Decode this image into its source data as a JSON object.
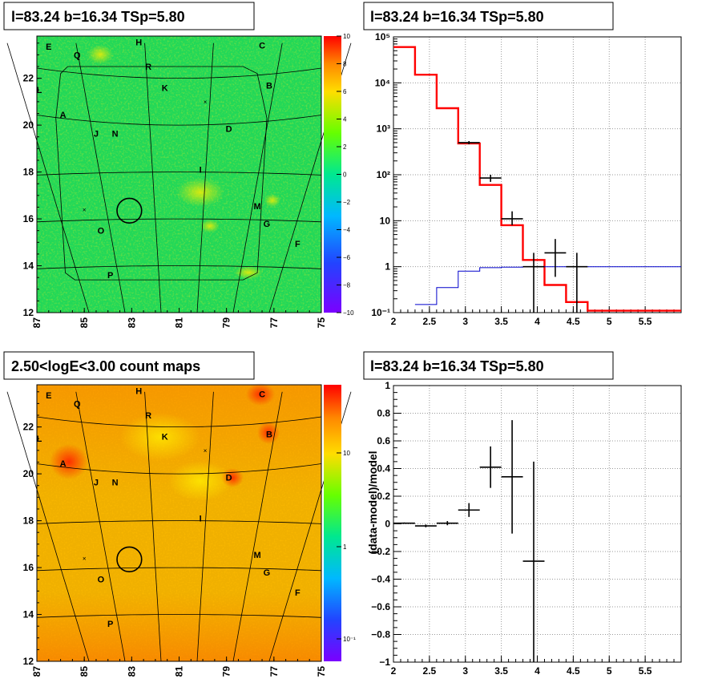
{
  "colors": {
    "model_line": "#ff0000",
    "data_points": "#000000",
    "background_line": "#0000cc",
    "grid": "#808080"
  },
  "panels": {
    "tl": {
      "title": "l=83.24 b=16.34 TSp=5.80"
    },
    "tr": {
      "title": "l=83.24 b=16.34 TSp=5.80"
    },
    "bl": {
      "title": "2.50<logE<3.00 count maps"
    },
    "br": {
      "title": "l=83.24 b=16.34 TSp=5.80"
    }
  },
  "chart_data": [
    {
      "type": "heatmap",
      "id": "tl",
      "title": "l=83.24 b=16.34 TSp=5.80",
      "xlim": [
        87,
        75
      ],
      "ylim": [
        12,
        23.8
      ],
      "xticks": [
        "87",
        "85",
        "83",
        "81",
        "79",
        "77",
        "75"
      ],
      "yticks": [
        "12",
        "14",
        "16",
        "18",
        "20",
        "22"
      ],
      "colorbar": {
        "min": -10,
        "max": 10,
        "ticks": [
          "10",
          "8",
          "6",
          "4",
          "2",
          "0",
          "−2",
          "−4",
          "−6",
          "−8",
          "−10"
        ]
      },
      "grid": true,
      "sources": [
        {
          "label": "E",
          "l": 86.5,
          "b": 23.35
        },
        {
          "label": "Q",
          "l": 85.3,
          "b": 23.0
        },
        {
          "label": "H",
          "l": 82.7,
          "b": 23.55
        },
        {
          "label": "C",
          "l": 77.5,
          "b": 23.4
        },
        {
          "label": "R",
          "l": 82.3,
          "b": 22.5
        },
        {
          "label": "B",
          "l": 77.2,
          "b": 21.7
        },
        {
          "label": "K",
          "l": 81.6,
          "b": 21.6
        },
        {
          "label": "L",
          "l": 86.9,
          "b": 21.5
        },
        {
          "label": "A",
          "l": 85.9,
          "b": 20.45
        },
        {
          "label": "D",
          "l": 78.9,
          "b": 19.85
        },
        {
          "label": "J",
          "l": 84.5,
          "b": 19.65
        },
        {
          "label": "N",
          "l": 83.7,
          "b": 19.65
        },
        {
          "label": "I",
          "l": 80.1,
          "b": 18.1
        },
        {
          "label": "M",
          "l": 77.7,
          "b": 16.55
        },
        {
          "label": "G",
          "l": 77.3,
          "b": 15.8
        },
        {
          "label": "O",
          "l": 84.3,
          "b": 15.5
        },
        {
          "label": "F",
          "l": 76.0,
          "b": 14.95
        },
        {
          "label": "P",
          "l": 83.9,
          "b": 13.6
        }
      ],
      "markers": [
        {
          "l": 79.9,
          "b": 21.0
        },
        {
          "l": 85.0,
          "b": 16.4
        }
      ],
      "circle": {
        "l": 83.1,
        "b": 16.35,
        "r": 0.5
      }
    },
    {
      "type": "line",
      "id": "tr",
      "title": "l=83.24 b=16.34 TSp=5.80",
      "xlim": [
        2,
        6
      ],
      "ylim": [
        0.1,
        100000
      ],
      "yscale": "log",
      "grid": true,
      "xticks": [
        "2",
        "2.5",
        "3",
        "3.5",
        "4",
        "4.5",
        "5",
        "5.5"
      ],
      "yticks": [
        "10⁻¹",
        "1",
        "10",
        "10²",
        "10³",
        "10⁴",
        "10⁵"
      ],
      "series": [
        {
          "style": "step",
          "color": "#ff0000",
          "edges": [
            2,
            2.3,
            2.6,
            2.9,
            3.2,
            3.5,
            3.8,
            4.1,
            4.4,
            4.7,
            5.0,
            6.0
          ],
          "values": [
            60000,
            15000,
            2800,
            480,
            60,
            8,
            1.4,
            0.4,
            0.17,
            0.11,
            0.11
          ]
        },
        {
          "style": "step",
          "color": "#0000cc",
          "edges": [
            2.3,
            2.6,
            2.9,
            3.2,
            3.5,
            3.8,
            4.1,
            4.4,
            4.7,
            5.0,
            6.0
          ],
          "values": [
            0.15,
            0.35,
            0.8,
            0.95,
            0.98,
            1.0,
            1.0,
            1.0,
            1.0,
            1.0
          ]
        },
        {
          "style": "errorbar",
          "color": "#000000",
          "points": [
            {
              "x": 3.05,
              "xerr": 0.15,
              "y": 500,
              "ylo": 460,
              "yhi": 540
            },
            {
              "x": 3.35,
              "xerr": 0.15,
              "y": 85,
              "ylo": 70,
              "yhi": 100
            },
            {
              "x": 3.65,
              "xerr": 0.15,
              "y": 11,
              "ylo": 8,
              "yhi": 16
            },
            {
              "x": 3.95,
              "xerr": 0.15,
              "y": 1,
              "ylo": 0.1,
              "yhi": 2
            },
            {
              "x": 4.25,
              "xerr": 0.15,
              "y": 2,
              "ylo": 0.6,
              "yhi": 4
            },
            {
              "x": 4.55,
              "xerr": 0.15,
              "y": 1,
              "ylo": 0.1,
              "yhi": 2
            }
          ]
        }
      ]
    },
    {
      "type": "heatmap",
      "id": "bl",
      "title": "2.50<logE<3.00 count maps",
      "xlim": [
        87,
        75
      ],
      "ylim": [
        12,
        23.8
      ],
      "xticks": [
        "87",
        "85",
        "83",
        "81",
        "79",
        "77",
        "75"
      ],
      "yticks": [
        "12",
        "14",
        "16",
        "18",
        "20",
        "22"
      ],
      "colorbar": {
        "scale": "log",
        "ticks": [
          "10",
          "1",
          "10⁻¹"
        ]
      },
      "grid": true,
      "sources": [
        {
          "label": "E",
          "l": 86.5,
          "b": 23.35
        },
        {
          "label": "Q",
          "l": 85.3,
          "b": 23.0
        },
        {
          "label": "H",
          "l": 82.7,
          "b": 23.55
        },
        {
          "label": "C",
          "l": 77.5,
          "b": 23.4
        },
        {
          "label": "R",
          "l": 82.3,
          "b": 22.5
        },
        {
          "label": "B",
          "l": 77.2,
          "b": 21.7
        },
        {
          "label": "K",
          "l": 81.6,
          "b": 21.6
        },
        {
          "label": "L",
          "l": 86.9,
          "b": 21.5
        },
        {
          "label": "A",
          "l": 85.9,
          "b": 20.45
        },
        {
          "label": "D",
          "l": 78.9,
          "b": 19.85
        },
        {
          "label": "J",
          "l": 84.5,
          "b": 19.65
        },
        {
          "label": "N",
          "l": 83.7,
          "b": 19.65
        },
        {
          "label": "I",
          "l": 80.1,
          "b": 18.1
        },
        {
          "label": "M",
          "l": 77.7,
          "b": 16.55
        },
        {
          "label": "G",
          "l": 77.3,
          "b": 15.8
        },
        {
          "label": "O",
          "l": 84.3,
          "b": 15.5
        },
        {
          "label": "F",
          "l": 76.0,
          "b": 14.95
        },
        {
          "label": "P",
          "l": 83.9,
          "b": 13.6
        }
      ],
      "markers": [
        {
          "l": 79.9,
          "b": 21.0
        },
        {
          "l": 85.0,
          "b": 16.4
        }
      ],
      "circle": {
        "l": 83.1,
        "b": 16.35,
        "r": 0.5
      }
    },
    {
      "type": "scatter",
      "id": "br",
      "title": "l=83.24 b=16.34 TSp=5.80",
      "ylabel": "(data-model)/model",
      "xlim": [
        2,
        6
      ],
      "ylim": [
        -1,
        1
      ],
      "grid": true,
      "xticks": [
        "2",
        "2.5",
        "3",
        "3.5",
        "4",
        "4.5",
        "5",
        "5.5"
      ],
      "yticks": [
        "−1",
        "−0.8",
        "−0.6",
        "−0.4",
        "−0.2",
        "0",
        "0.2",
        "0.4",
        "0.6",
        "0.8",
        "1"
      ],
      "points": [
        {
          "x": 2.15,
          "xerr": 0.15,
          "y": 0.005,
          "ylo": 0.0,
          "yhi": 0.01
        },
        {
          "x": 2.45,
          "xerr": 0.15,
          "y": -0.015,
          "ylo": -0.025,
          "yhi": -0.005
        },
        {
          "x": 2.75,
          "xerr": 0.15,
          "y": 0.005,
          "ylo": -0.01,
          "yhi": 0.02
        },
        {
          "x": 3.05,
          "xerr": 0.15,
          "y": 0.1,
          "ylo": 0.05,
          "yhi": 0.15
        },
        {
          "x": 3.35,
          "xerr": 0.15,
          "y": 0.41,
          "ylo": 0.26,
          "yhi": 0.56
        },
        {
          "x": 3.65,
          "xerr": 0.15,
          "y": 0.34,
          "ylo": -0.07,
          "yhi": 0.75
        },
        {
          "x": 3.95,
          "xerr": 0.15,
          "y": -0.27,
          "ylo": -1.0,
          "yhi": 0.45
        }
      ]
    }
  ]
}
